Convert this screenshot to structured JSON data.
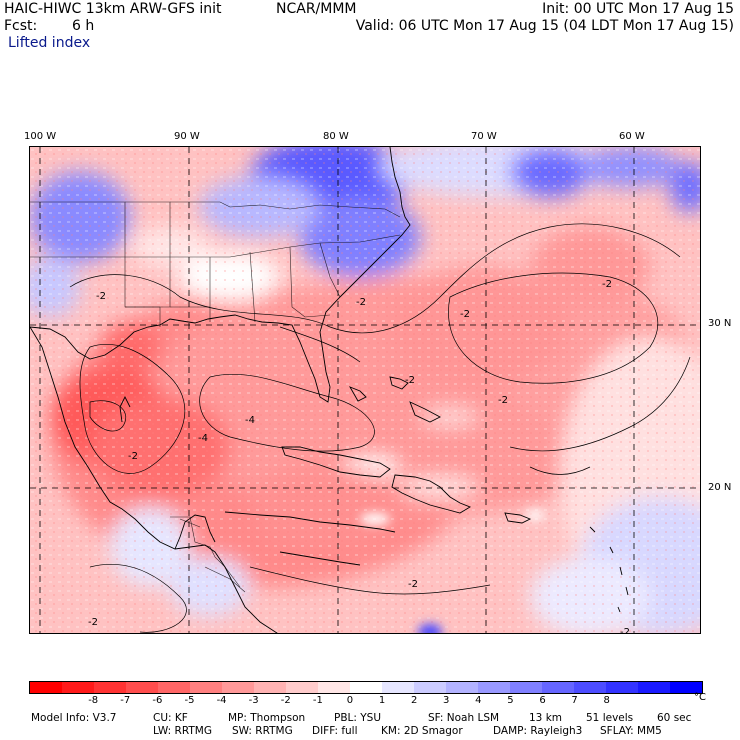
{
  "header": {
    "model_title": "HAIC-HIWC 13km ARW-GFS init",
    "org": "NCAR/MMM",
    "init": "Init: 00 UTC Mon 17 Aug 15",
    "fcst_label": "Fcst:",
    "fcst_value": "6 h",
    "valid": "Valid: 06 UTC Mon 17 Aug 15 (04 LDT Mon 17 Aug 15)",
    "field": "Lifted index"
  },
  "map": {
    "lon_labels": [
      "100 W",
      "90 W",
      "80 W",
      "70 W",
      "60 W"
    ],
    "lat_labels": [
      "30 N",
      "20 N"
    ],
    "contour_labels": [
      "-2",
      "-2",
      "-2",
      "-2",
      "-2",
      "-2",
      "-2",
      "-2",
      "-4",
      "-4",
      "-2",
      "-2"
    ]
  },
  "colorbar": {
    "unit": "°C",
    "ticks": [
      "-8",
      "-7",
      "-6",
      "-5",
      "-4",
      "-3",
      "-2",
      "-1",
      "0",
      "1",
      "2",
      "3",
      "4",
      "5",
      "6",
      "7",
      "8"
    ],
    "colors": [
      "#ff0000",
      "#ff1a1a",
      "#ff3333",
      "#ff4d4d",
      "#ff6666",
      "#ff8080",
      "#ff9999",
      "#ffb3b3",
      "#ffcccc",
      "#ffe6e6",
      "#ffffff",
      "#e6e6ff",
      "#ccccff",
      "#b3b3ff",
      "#9999ff",
      "#8080ff",
      "#6666ff",
      "#4d4dff",
      "#3333ff",
      "#1a1aff",
      "#0000ff"
    ]
  },
  "model_info": {
    "line1": [
      "Model Info: V3.7",
      "CU: KF",
      "MP: Thompson",
      "PBL: YSU",
      "SF: Noah LSM",
      "13 km",
      "51 levels",
      "60 sec"
    ],
    "line2": [
      "LW: RRTMG",
      "SW: RRTMG",
      "DIFF: full",
      "KM: 2D Smagor",
      "DAMP: Rayleigh3",
      "SFLAY: MM5"
    ]
  }
}
